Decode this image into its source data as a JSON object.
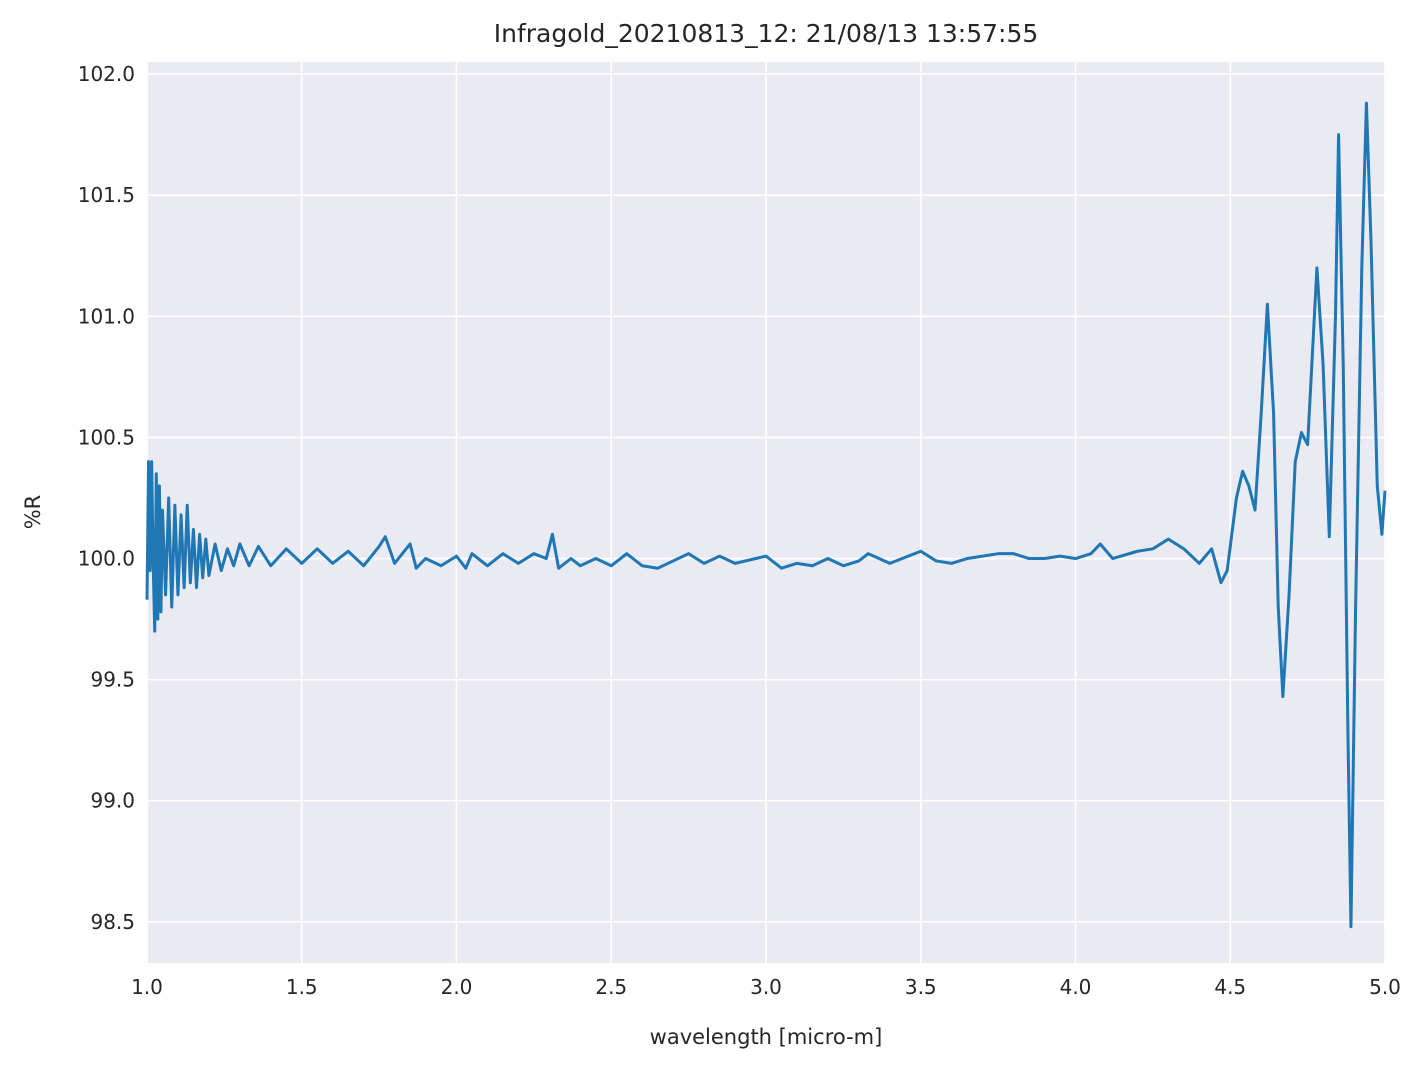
{
  "chart_data": {
    "type": "line",
    "title": "Infragold_20210813_12:  21/08/13 13:57:55",
    "xlabel": "wavelength [micro-m]",
    "ylabel": "%R",
    "xlim": [
      1.0,
      5.0
    ],
    "ylim": [
      98.33,
      102.05
    ],
    "xticks": [
      {
        "value": 1,
        "label": "1.0"
      },
      1.5,
      {
        "value": 2,
        "label": "2.0"
      },
      2.5,
      {
        "value": 3,
        "label": "3.0"
      },
      3.5,
      {
        "value": 4,
        "label": "4.0"
      },
      4.5,
      {
        "value": 5,
        "label": "5.0"
      }
    ],
    "yticks": [
      98.5,
      {
        "value": 99,
        "label": "99.0"
      },
      99.5,
      {
        "value": 100,
        "label": "100.0"
      },
      100.5,
      {
        "value": 101,
        "label": "101.0"
      },
      101.5,
      {
        "value": 102,
        "label": "102.0"
      }
    ],
    "grid": true,
    "series": [
      {
        "color": "#1f77b4",
        "x": [
          1.0,
          1.005,
          1.01,
          1.015,
          1.02,
          1.025,
          1.03,
          1.035,
          1.04,
          1.045,
          1.05,
          1.06,
          1.07,
          1.08,
          1.09,
          1.1,
          1.11,
          1.12,
          1.13,
          1.14,
          1.15,
          1.16,
          1.17,
          1.18,
          1.19,
          1.2,
          1.22,
          1.24,
          1.26,
          1.28,
          1.3,
          1.33,
          1.36,
          1.4,
          1.45,
          1.5,
          1.55,
          1.6,
          1.65,
          1.7,
          1.75,
          1.77,
          1.8,
          1.85,
          1.87,
          1.9,
          1.95,
          2.0,
          2.03,
          2.05,
          2.1,
          2.15,
          2.2,
          2.25,
          2.29,
          2.31,
          2.33,
          2.37,
          2.4,
          2.45,
          2.5,
          2.55,
          2.6,
          2.65,
          2.7,
          2.75,
          2.8,
          2.85,
          2.9,
          3.0,
          3.05,
          3.1,
          3.15,
          3.2,
          3.25,
          3.3,
          3.33,
          3.4,
          3.5,
          3.55,
          3.6,
          3.65,
          3.7,
          3.75,
          3.8,
          3.85,
          3.9,
          3.95,
          4.0,
          4.05,
          4.08,
          4.12,
          4.2,
          4.25,
          4.3,
          4.35,
          4.4,
          4.44,
          4.47,
          4.49,
          4.52,
          4.54,
          4.56,
          4.58,
          4.6,
          4.62,
          4.64,
          4.655,
          4.67,
          4.69,
          4.71,
          4.73,
          4.75,
          4.78,
          4.8,
          4.82,
          4.84,
          4.85,
          4.865,
          4.88,
          4.89,
          4.905,
          4.925,
          4.94,
          4.955,
          4.975,
          4.99,
          5.0
        ],
        "values": [
          99.83,
          100.4,
          99.95,
          100.4,
          99.98,
          99.7,
          100.35,
          99.75,
          100.3,
          99.78,
          100.2,
          99.85,
          100.25,
          99.8,
          100.22,
          99.85,
          100.18,
          99.88,
          100.22,
          99.9,
          100.12,
          99.88,
          100.1,
          99.92,
          100.08,
          99.93,
          100.06,
          99.95,
          100.04,
          99.97,
          100.06,
          99.97,
          100.05,
          99.97,
          100.04,
          99.98,
          100.04,
          99.98,
          100.03,
          99.97,
          100.05,
          100.09,
          99.98,
          100.06,
          99.96,
          100.0,
          99.97,
          100.01,
          99.96,
          100.02,
          99.97,
          100.02,
          99.98,
          100.02,
          100.0,
          100.1,
          99.96,
          100.0,
          99.97,
          100.0,
          99.97,
          100.02,
          99.97,
          99.96,
          99.99,
          100.02,
          99.98,
          100.01,
          99.98,
          100.01,
          99.96,
          99.98,
          99.97,
          100.0,
          99.97,
          99.99,
          100.02,
          99.98,
          100.03,
          99.99,
          99.98,
          100.0,
          100.01,
          100.02,
          100.02,
          100.0,
          100.0,
          100.01,
          100.0,
          100.02,
          100.06,
          100.0,
          100.03,
          100.04,
          100.08,
          100.04,
          99.98,
          100.04,
          99.9,
          99.95,
          100.25,
          100.36,
          100.3,
          100.2,
          100.6,
          101.05,
          100.6,
          99.8,
          99.43,
          99.85,
          100.4,
          100.52,
          100.47,
          101.2,
          100.8,
          100.09,
          101.0,
          101.75,
          100.8,
          99.3,
          98.48,
          99.8,
          101.2,
          101.88,
          101.3,
          100.3,
          100.1,
          100.28
        ]
      }
    ]
  }
}
